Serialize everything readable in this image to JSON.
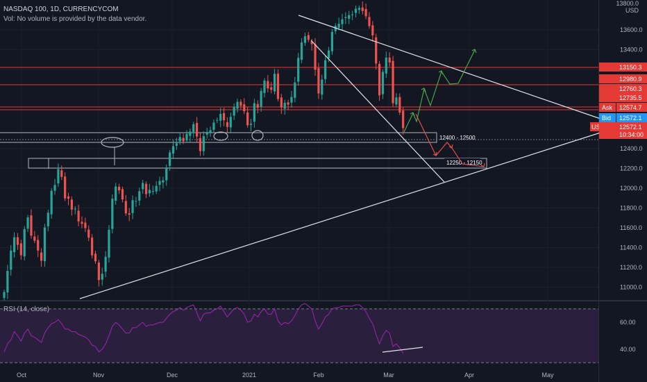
{
  "header": {
    "title": "NASDAQ 100, 1D, CURRENCYCOM",
    "volume_note": "Vol: No volume is provided by the data vendor."
  },
  "axis": {
    "currency": "USD",
    "top_partial_label": "13800.0"
  },
  "rsi": {
    "label": "RSI (14, close)",
    "ticks": [
      "60.00",
      "40.00"
    ],
    "ylim": [
      27,
      75
    ],
    "overbought": 70,
    "oversold": 30
  },
  "price_badges": {
    "ask_label": "Ask",
    "ask_value": "12574.7",
    "bid_label": "Bid",
    "bid_value": "12572.1",
    "symbol": "US100",
    "last_value": "12572.1",
    "countdown": "10:34:00"
  },
  "colors": {
    "background": "#131722",
    "up": "#26a69a",
    "down": "#ef5350",
    "level_line": "#e53935",
    "zone_box": "#b2b5be",
    "trendline": "#e0e3eb",
    "rsi_line": "#9c27b0",
    "rsi_band": "#2a1f3d",
    "bid_badge": "#2196f3",
    "green_arrow": "#4caf50",
    "red_arrow": "#ef5350"
  },
  "chart_data": {
    "type": "candlestick",
    "ylim": [
      10870,
      13900
    ],
    "y_ticks": [
      "13600.0",
      "13400.0",
      "13200.0",
      "12400.0",
      "12200.0",
      "12000.0",
      "11800.0",
      "11600.0",
      "11400.0",
      "11200.0",
      "11000.0"
    ],
    "x_ticks": [
      "Oct",
      "Nov",
      "Dec",
      "2021",
      "Feb",
      "Mar",
      "Apr",
      "May"
    ],
    "levels": [
      {
        "value": 13150.3,
        "label": "13150.3"
      },
      {
        "value": 12980.9,
        "label": "12980.9"
      },
      {
        "value": 12760.3,
        "label": "12760.3"
      },
      {
        "value": 12735.5,
        "label": "12735.5"
      }
    ],
    "zones": [
      {
        "label": "12400 - 12500",
        "low": 12400,
        "high": 12500
      },
      {
        "label": "12250 - 12150",
        "low": 12150,
        "high": 12250
      }
    ],
    "candle_closes": [
      10951,
      11164,
      11370,
      11504,
      11427,
      11322,
      11587,
      11705,
      11520,
      11469,
      11370,
      11267,
      11603,
      11752,
      11974,
      12032,
      12192,
      12113,
      11896,
      11893,
      11783,
      11792,
      11664,
      11640,
      11597,
      11500,
      11322,
      11261,
      11072,
      11136,
      11307,
      11580,
      11893,
      12017,
      11978,
      11886,
      11745,
      11732,
      11878,
      11870,
      11969,
      12052,
      11940,
      11983,
      11971,
      12022,
      12073,
      12079,
      12209,
      12361,
      12424,
      12453,
      12516,
      12474,
      12548,
      12572,
      12646,
      12521,
      12374,
      12525,
      12567,
      12585,
      12662,
      12689,
      12749,
      12686,
      12618,
      12720,
      12819,
      12872,
      12831,
      12777,
      12635,
      12651,
      12858,
      12812,
      12981,
      13086,
      13007,
      12993,
      13155,
      12900,
      12814,
      12862,
      12843,
      12921,
      13067,
      13316,
      13471,
      13534,
      13498,
      13454,
      13195,
      12956,
      13097,
      13292,
      13390,
      13577,
      13640,
      13660,
      13706,
      13727,
      13747,
      13754,
      13812,
      13821,
      13789,
      13736,
      13636,
      13543,
      13258,
      12937,
      13174,
      13318,
      13269,
      12857,
      12916,
      12764,
      12606
    ]
  }
}
